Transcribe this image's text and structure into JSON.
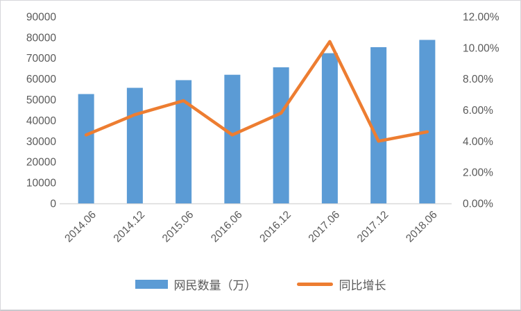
{
  "chart_data": {
    "type": "combo",
    "title": "",
    "categories": [
      "2014.06",
      "2014.12",
      "2015.06",
      "2016.06",
      "2016.12",
      "2017.06",
      "2017.12",
      "2018.06"
    ],
    "series": [
      {
        "name": "网民数量（万）",
        "type": "bar",
        "axis": "left",
        "color": "#5B9BD5",
        "values": [
          52700,
          55700,
          59400,
          62000,
          65600,
          72400,
          75300,
          78800
        ]
      },
      {
        "name": "同比增长",
        "type": "line",
        "axis": "right",
        "color": "#ED7D31",
        "values": [
          4.4,
          5.7,
          6.6,
          4.4,
          5.8,
          10.4,
          4.0,
          4.6
        ]
      }
    ],
    "axes": {
      "left": {
        "min": 0,
        "max": 90000,
        "step": 10000,
        "ticks": [
          "0",
          "10000",
          "20000",
          "30000",
          "40000",
          "50000",
          "60000",
          "70000",
          "80000",
          "90000"
        ]
      },
      "right": {
        "min": 0,
        "max": 12,
        "step": 2,
        "unit": "%",
        "ticks": [
          "0.00%",
          "2.00%",
          "4.00%",
          "6.00%",
          "8.00%",
          "10.00%",
          "12.00%"
        ]
      }
    },
    "legend_position": "bottom",
    "grid": false,
    "background": "#FFFFFF",
    "text_color": "#595959",
    "axis_line_color": "#D9D9D9"
  }
}
